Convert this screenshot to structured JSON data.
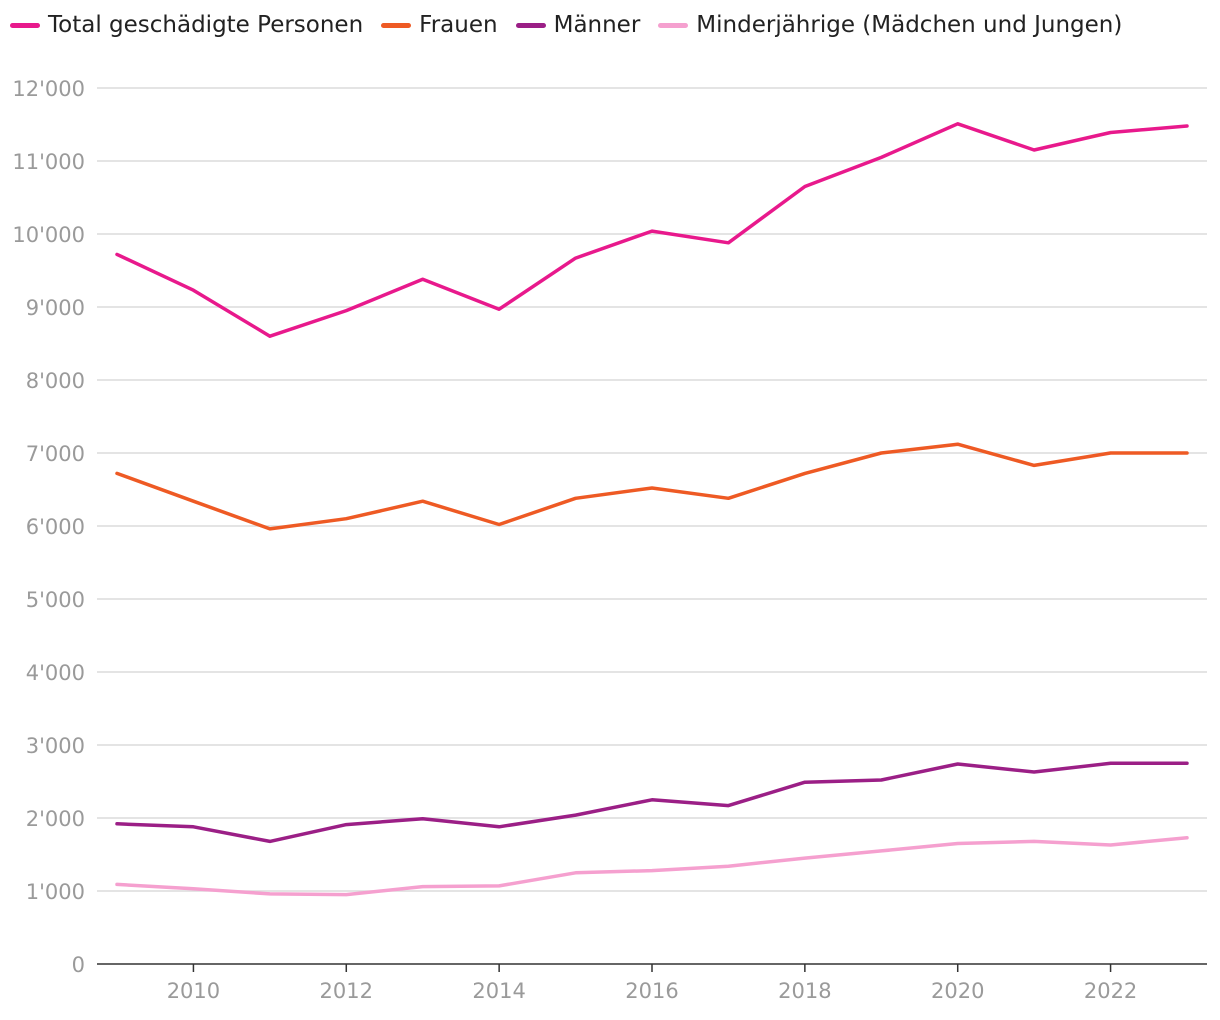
{
  "chart_data": {
    "type": "line",
    "title": "",
    "xlabel": "",
    "ylabel": "",
    "x": [
      2009,
      2010,
      2011,
      2012,
      2013,
      2014,
      2015,
      2016,
      2017,
      2018,
      2019,
      2020,
      2021,
      2022,
      2023
    ],
    "xticks": [
      2010,
      2012,
      2014,
      2016,
      2018,
      2020,
      2022
    ],
    "xtick_labels": [
      "2010",
      "2012",
      "2014",
      "2016",
      "2018",
      "2020",
      "2022"
    ],
    "ylim": [
      0,
      12000
    ],
    "yticks": [
      0,
      1000,
      2000,
      3000,
      4000,
      5000,
      6000,
      7000,
      8000,
      9000,
      10000,
      11000,
      12000
    ],
    "ytick_labels": [
      "0",
      "1'000",
      "2'000",
      "3'000",
      "4'000",
      "5'000",
      "6'000",
      "7'000",
      "8'000",
      "9'000",
      "10'000",
      "11'000",
      "12'000"
    ],
    "grid": true,
    "legend_position": "top-left",
    "series": [
      {
        "name": "Total geschädigte Personen",
        "color": "#e8198c",
        "values": [
          9720,
          9230,
          8600,
          8950,
          9380,
          8970,
          9670,
          10040,
          9880,
          10650,
          11050,
          11510,
          11150,
          11390,
          11480
        ]
      },
      {
        "name": "Frauen",
        "color": "#ee5a24",
        "values": [
          6720,
          6340,
          5960,
          6100,
          6340,
          6020,
          6380,
          6520,
          6380,
          6720,
          7000,
          7120,
          6830,
          7000,
          7000
        ]
      },
      {
        "name": "Männer",
        "color": "#9b1f86",
        "values": [
          1920,
          1880,
          1680,
          1910,
          1990,
          1880,
          2040,
          2250,
          2170,
          2490,
          2520,
          2740,
          2630,
          2750,
          2750
        ]
      },
      {
        "name": "Minderjährige (Mädchen und Jungen)",
        "color": "#f5a0cf",
        "values": [
          1090,
          1030,
          960,
          950,
          1060,
          1070,
          1250,
          1280,
          1340,
          1450,
          1550,
          1650,
          1680,
          1630,
          1730
        ]
      }
    ]
  }
}
